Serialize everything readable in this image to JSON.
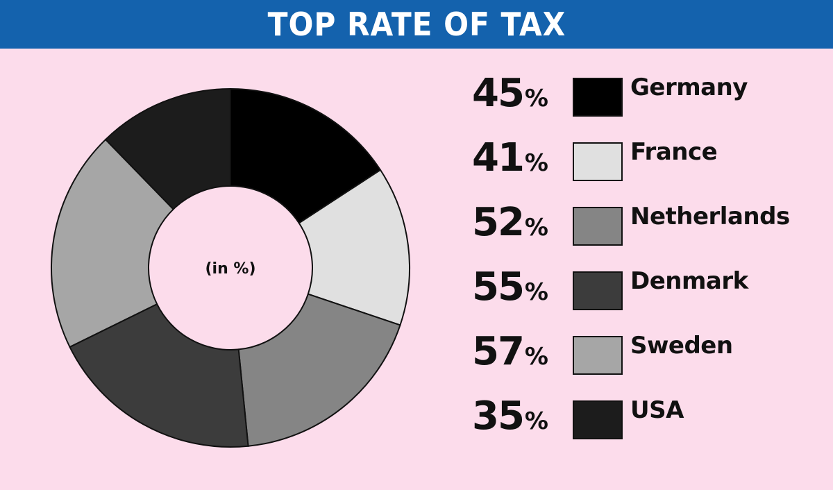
{
  "header": {
    "title": "TOP RATE OF TAX"
  },
  "chart_data": {
    "type": "pie",
    "title": "TOP RATE OF TAX",
    "center_label": "(in %)",
    "categories": [
      "Germany",
      "France",
      "Netherlands",
      "Denmark",
      "Sweden",
      "USA"
    ],
    "values": [
      45,
      41,
      52,
      55,
      57,
      35
    ],
    "value_text": [
      "45",
      "41",
      "52",
      "55",
      "57",
      "35"
    ],
    "unit": "%",
    "colors": [
      "#000000",
      "#e0e0e0",
      "#858585",
      "#3c3c3c",
      "#a6a6a6",
      "#1c1c1c"
    ],
    "legend_position": "right"
  }
}
